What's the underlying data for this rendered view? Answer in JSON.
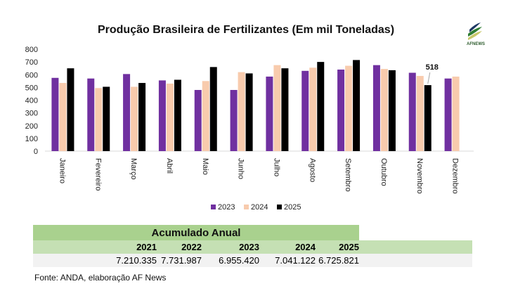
{
  "chart_data": {
    "type": "bar",
    "title": "Produção Brasileira de Fertilizantes (Em mil Toneladas)",
    "categories": [
      "Janeiro",
      "Fevereiro",
      "Março",
      "Abril",
      "Maio",
      "Junho",
      "Julho",
      "Agosto",
      "Setembro",
      "Outubro",
      "Novembro",
      "Dezembro"
    ],
    "series": [
      {
        "name": "2023",
        "color": "#7030a0",
        "values": [
          575,
          570,
          605,
          555,
          480,
          480,
          585,
          630,
          640,
          675,
          615,
          570
        ]
      },
      {
        "name": "2024",
        "color": "#f8cbad",
        "values": [
          535,
          495,
          505,
          530,
          550,
          620,
          675,
          655,
          670,
          645,
          590,
          585
        ]
      },
      {
        "name": "2025",
        "color": "#000000",
        "values": [
          650,
          505,
          535,
          560,
          660,
          610,
          650,
          700,
          715,
          635,
          518,
          null
        ]
      }
    ],
    "ylim": [
      0,
      800
    ],
    "yticks": [
      0,
      100,
      200,
      300,
      400,
      500,
      600,
      700,
      800
    ],
    "annotations": [
      {
        "category": "Novembro",
        "series": "2025",
        "text": "518"
      }
    ],
    "legend": "bottom"
  },
  "logo_text": "AFNEWS AGRÍCOLA",
  "table": {
    "title": "Acumulado Anual",
    "years": [
      "2021",
      "2022",
      "2023",
      "2024",
      "2025"
    ],
    "values": [
      "7.210.335",
      "7.731.987",
      "6.955.420",
      "7.041.122",
      "6.725.821"
    ]
  },
  "source": "Fonte: ANDA, elaboração AF News"
}
